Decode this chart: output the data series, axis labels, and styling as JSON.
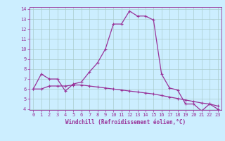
{
  "xlabel": "Windchill (Refroidissement éolien,°C)",
  "line_color": "#993399",
  "bg_color": "#cceeff",
  "hours": [
    0,
    1,
    2,
    3,
    4,
    5,
    6,
    7,
    8,
    9,
    10,
    11,
    12,
    13,
    14,
    15,
    16,
    17,
    18,
    19,
    20,
    21,
    22,
    23
  ],
  "temp": [
    6.0,
    7.5,
    7.0,
    7.0,
    5.8,
    6.5,
    6.7,
    7.7,
    8.6,
    10.0,
    12.5,
    12.5,
    13.8,
    13.3,
    13.3,
    12.9,
    7.5,
    6.1,
    5.9,
    4.5,
    4.5,
    3.8,
    4.5,
    4.0
  ],
  "windchill": [
    6.0,
    6.0,
    6.3,
    6.3,
    6.3,
    6.4,
    6.4,
    6.3,
    6.2,
    6.1,
    6.0,
    5.9,
    5.8,
    5.7,
    5.6,
    5.5,
    5.35,
    5.2,
    5.05,
    4.9,
    4.75,
    4.6,
    4.5,
    4.3
  ],
  "ylim": [
    4,
    14
  ],
  "xlim": [
    0,
    23
  ],
  "yticks": [
    4,
    5,
    6,
    7,
    8,
    9,
    10,
    11,
    12,
    13,
    14
  ],
  "xticks": [
    0,
    1,
    2,
    3,
    4,
    5,
    6,
    7,
    8,
    9,
    10,
    11,
    12,
    13,
    14,
    15,
    16,
    17,
    18,
    19,
    20,
    21,
    22,
    23
  ],
  "grid_color": "#aacccc",
  "marker": "+",
  "markersize": 3.5,
  "linewidth": 0.9,
  "tick_fontsize": 5.0,
  "label_fontsize": 5.5
}
